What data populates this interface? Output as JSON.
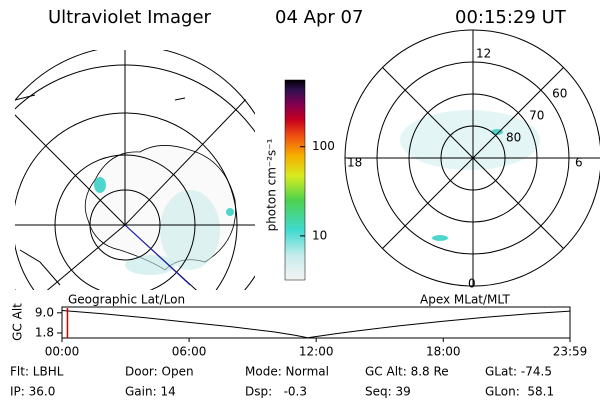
{
  "header": {
    "title": "Ultraviolet Imager",
    "date": "04 Apr 07",
    "time": "00:15:29 UT"
  },
  "colorbar": {
    "label": "photon cm⁻²s⁻¹",
    "scale": "log",
    "lim": [
      3.2,
      560
    ],
    "ticks": [
      10,
      100
    ]
  },
  "geo_panel": {
    "label": "Geographic Lat/Lon"
  },
  "mag_panel": {
    "label": "Apex MLat/MLT",
    "mlt_labels": {
      "top": "12",
      "left": "18",
      "right": "6",
      "bottom": "0"
    },
    "lat_rings": [
      80,
      70,
      60
    ]
  },
  "altitude": {
    "label": "GC Alt",
    "ylim": [
      0,
      10
    ],
    "yticks": [
      {
        "value": 9,
        "label": "9.0"
      },
      {
        "value": 1.8,
        "label": "1.8"
      }
    ],
    "xlim": [
      0,
      23.983
    ],
    "xticks": [
      {
        "value": 0,
        "label": "00:00"
      },
      {
        "value": 6,
        "label": "06:00"
      },
      {
        "value": 12,
        "label": "12:00"
      },
      {
        "value": 18,
        "label": "18:00"
      },
      {
        "value": 23.983,
        "label": "23:59"
      }
    ],
    "x": [
      0,
      2,
      4,
      6,
      8,
      10,
      11,
      11.6,
      13,
      14,
      16,
      18,
      20,
      22,
      23.983
    ],
    "values": [
      9.8,
      8.6,
      7.2,
      5.6,
      4.0,
      2.2,
      1.0,
      0.1,
      1.6,
      2.6,
      4.4,
      6.0,
      7.4,
      8.6,
      9.6
    ],
    "current": 0.258,
    "line_color": "#000000",
    "marker_color": "#cc0000"
  },
  "footer": [
    [
      "Flt: LBHL",
      "Door: Open",
      "Mode: Normal",
      "GC Alt: 8.8 Re",
      "GLat: -74.5"
    ],
    [
      "IP: 36.0",
      "Gain: 14",
      "Dsp:   -0.3",
      "Seq: 39",
      "GLon:  58.1"
    ]
  ]
}
